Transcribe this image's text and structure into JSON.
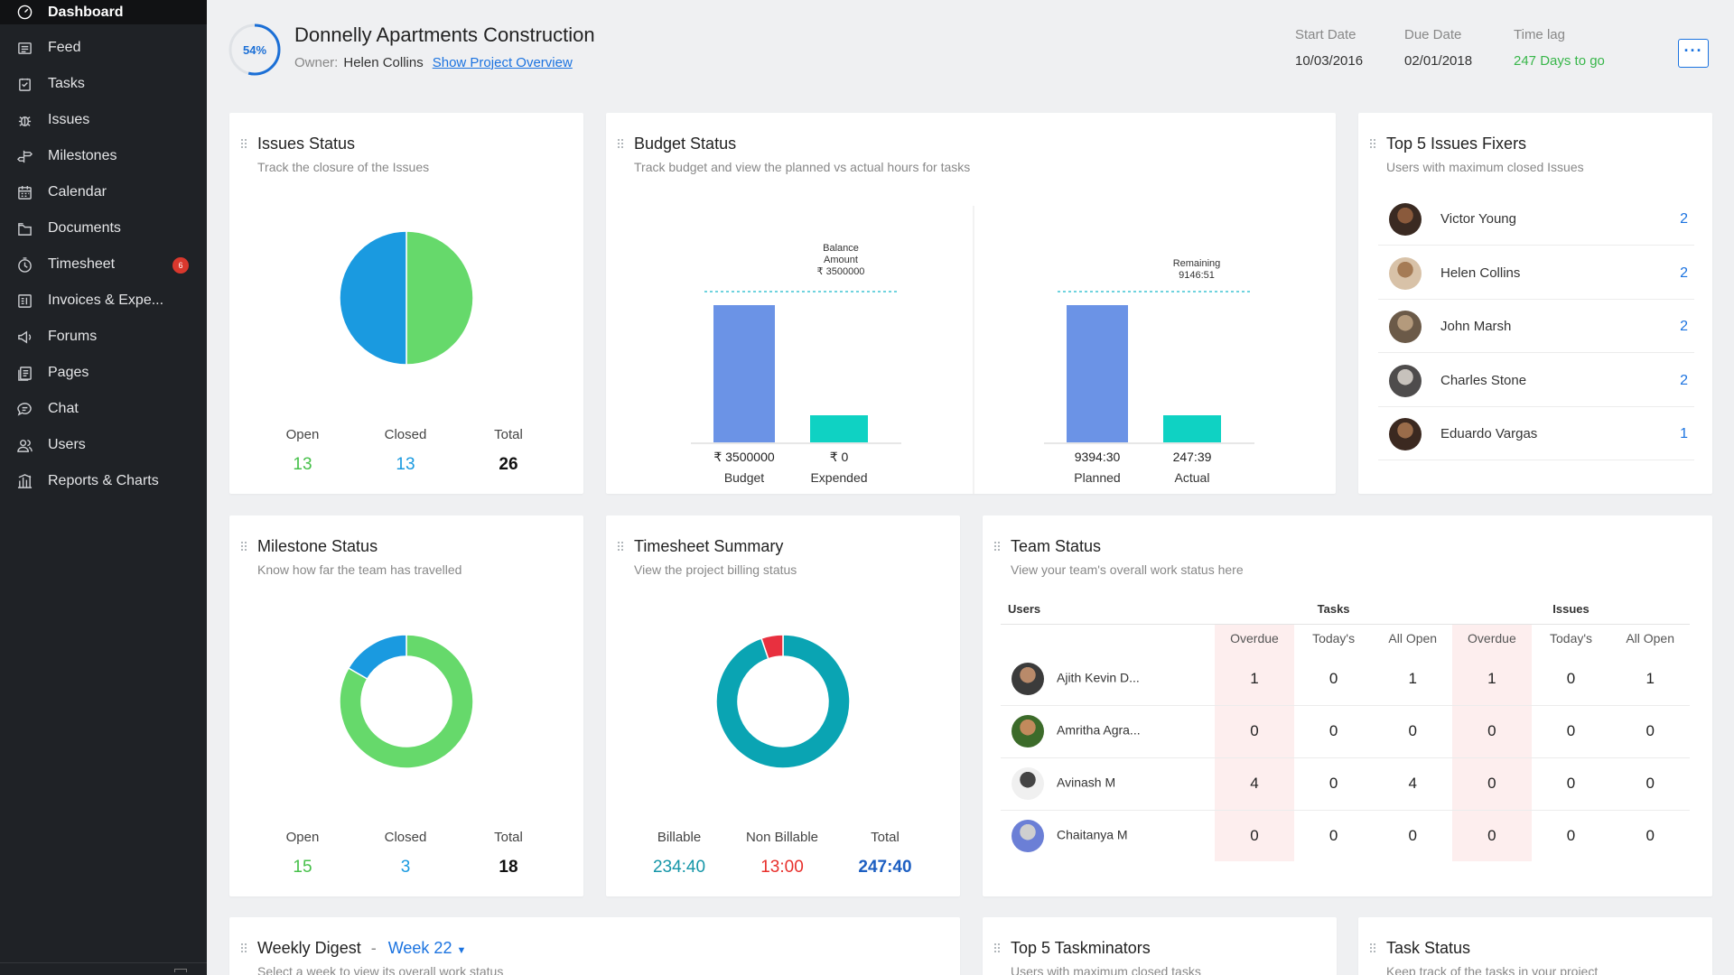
{
  "sidebar": {
    "items": [
      {
        "label": "Dashboard",
        "icon": "dashboard-icon",
        "active": true
      },
      {
        "label": "Feed",
        "icon": "feed-icon"
      },
      {
        "label": "Tasks",
        "icon": "tasks-icon"
      },
      {
        "label": "Issues",
        "icon": "bug-icon"
      },
      {
        "label": "Milestones",
        "icon": "signpost-icon"
      },
      {
        "label": "Calendar",
        "icon": "calendar-icon"
      },
      {
        "label": "Documents",
        "icon": "folder-icon"
      },
      {
        "label": "Timesheet",
        "icon": "clock-icon",
        "badge": "6"
      },
      {
        "label": "Invoices & Expe...",
        "icon": "invoice-icon"
      },
      {
        "label": "Forums",
        "icon": "megaphone-icon"
      },
      {
        "label": "Pages",
        "icon": "pages-icon"
      },
      {
        "label": "Chat",
        "icon": "chat-icon"
      },
      {
        "label": "Users",
        "icon": "users-icon"
      },
      {
        "label": "Reports & Charts",
        "icon": "reports-icon"
      }
    ]
  },
  "header": {
    "progress": "54%",
    "progress_value": 0.54,
    "title": "Donnelly Apartments Construction",
    "owner_label": "Owner:",
    "owner_name": "Helen Collins",
    "overview_link": "Show Project Overview",
    "start_label": "Start Date",
    "start_value": "10/03/2016",
    "due_label": "Due Date",
    "due_value": "02/01/2018",
    "lag_label": "Time lag",
    "lag_value": "247 Days to go",
    "more_label": "···"
  },
  "issues_status": {
    "title": "Issues Status",
    "subtitle": "Track the closure of the Issues",
    "open_label": "Open",
    "open": "13",
    "closed_label": "Closed",
    "closed": "13",
    "total_label": "Total",
    "total": "26"
  },
  "budget_status": {
    "title": "Budget Status",
    "subtitle": "Track budget and view the planned vs actual hours for tasks",
    "budget_annotation": [
      "Balance",
      "Amount",
      "₹ 3500000"
    ],
    "hours_annotation": [
      "Remaining",
      "9146:51"
    ]
  },
  "top_fixers": {
    "title": "Top 5 Issues Fixers",
    "subtitle": "Users with maximum closed Issues",
    "rows": [
      {
        "name": "Victor Young",
        "count": "2"
      },
      {
        "name": "Helen Collins",
        "count": "2"
      },
      {
        "name": "John Marsh",
        "count": "2"
      },
      {
        "name": "Charles Stone",
        "count": "2"
      },
      {
        "name": "Eduardo Vargas",
        "count": "1"
      }
    ]
  },
  "milestone_status": {
    "title": "Milestone Status",
    "subtitle": "Know how far the team has travelled",
    "open_label": "Open",
    "open": "15",
    "closed_label": "Closed",
    "closed": "3",
    "total_label": "Total",
    "total": "18"
  },
  "timesheet_summary": {
    "title": "Timesheet Summary",
    "subtitle": "View the project billing status",
    "billable_label": "Billable",
    "billable": "234:40",
    "nonbillable_label": "Non Billable",
    "nonbillable": "13:00",
    "total_label": "Total",
    "total": "247:40"
  },
  "team_status": {
    "title": "Team Status",
    "subtitle": "View your team's overall work status here",
    "users_header": "Users",
    "tasks_header": "Tasks",
    "issues_header": "Issues",
    "columns": [
      "Overdue",
      "Today's",
      "All Open",
      "Overdue",
      "Today's",
      "All Open"
    ],
    "rows": [
      {
        "name": "Ajith Kevin D...",
        "values": [
          "1",
          "0",
          "1",
          "1",
          "0",
          "1"
        ]
      },
      {
        "name": "Amritha Agra...",
        "values": [
          "0",
          "0",
          "0",
          "0",
          "0",
          "0"
        ]
      },
      {
        "name": "Avinash M",
        "values": [
          "4",
          "0",
          "4",
          "0",
          "0",
          "0"
        ]
      },
      {
        "name": "Chaitanya M",
        "values": [
          "0",
          "0",
          "0",
          "0",
          "0",
          "0"
        ]
      }
    ]
  },
  "weekly_digest": {
    "title": "Weekly Digest",
    "sep": "-",
    "week": "Week 22",
    "subtitle": "Select a week to view its overall work status"
  },
  "top_taskminators": {
    "title": "Top 5 Taskminators",
    "subtitle": "Users with maximum closed tasks"
  },
  "task_status": {
    "title": "Task Status",
    "subtitle": "Keep track of the tasks in your project"
  },
  "chart_data": [
    {
      "type": "pie",
      "title": "Issues Status",
      "labels": [
        "Open",
        "Closed"
      ],
      "values": [
        13,
        13
      ],
      "colors": [
        "#66d96b",
        "#1a9ae0"
      ]
    },
    {
      "type": "bar",
      "title": "Budget Status",
      "categories": [
        "Budget",
        "Expended"
      ],
      "value_labels": [
        "₹ 3500000",
        "₹ 0"
      ],
      "values": [
        3500000,
        0
      ],
      "colors": [
        "#6b93e6",
        "#0fd2c3"
      ]
    },
    {
      "type": "bar",
      "categories": [
        "Planned",
        "Actual"
      ],
      "value_labels": [
        "9394:30",
        "247:39"
      ],
      "values": [
        9394.5,
        247.65
      ],
      "colors": [
        "#6b93e6",
        "#0fd2c3"
      ]
    },
    {
      "type": "pie",
      "title": "Milestone Status",
      "labels": [
        "Open",
        "Closed"
      ],
      "values": [
        15,
        3
      ],
      "colors": [
        "#66d96b",
        "#1a9ae0"
      ]
    },
    {
      "type": "pie",
      "title": "Timesheet Summary",
      "labels": [
        "Billable",
        "Non Billable"
      ],
      "values": [
        234.67,
        13
      ],
      "colors": [
        "#0aa4b3",
        "#e8303f"
      ]
    }
  ]
}
